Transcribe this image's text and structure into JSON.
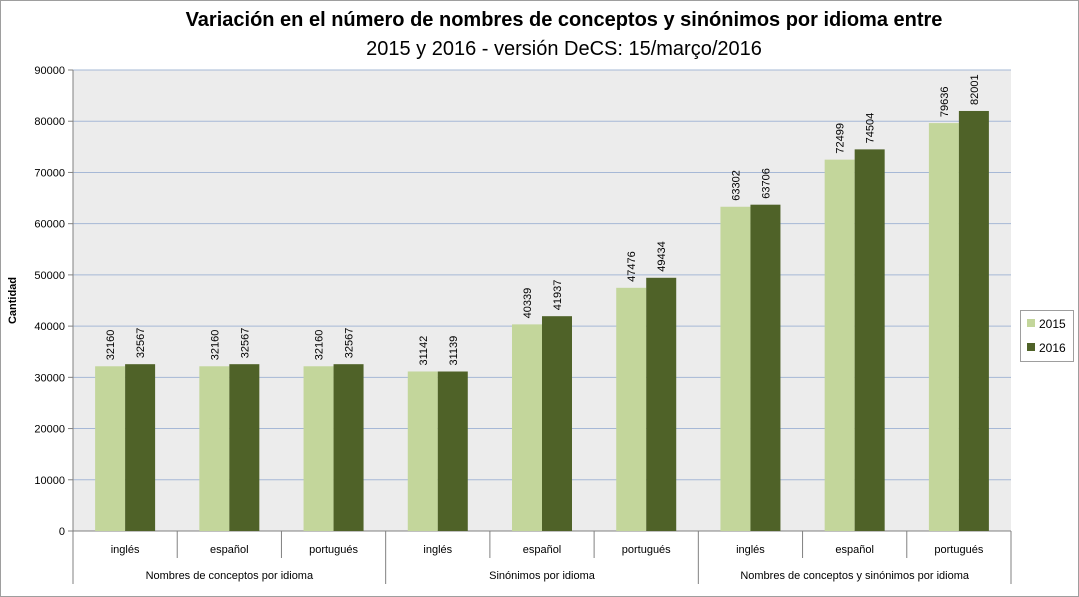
{
  "chart_data": {
    "type": "bar",
    "title": "Variación en el número de nombres de conceptos y sinónimos por idioma entre",
    "subtitle": "2015 y 2016 - versión DeCS: 15/março/2016",
    "ylabel": "Cantidad",
    "ylim": [
      0,
      90000
    ],
    "yticks": [
      "0",
      "10000",
      "20000",
      "30000",
      "40000",
      "50000",
      "60000",
      "70000",
      "80000",
      "90000"
    ],
    "grid": true,
    "legend_position": "right",
    "categories": [
      "inglés",
      "español",
      "portugués",
      "inglés",
      "español",
      "portugués",
      "inglés",
      "español",
      "portugués"
    ],
    "groups": [
      "Nombres de conceptos por idioma",
      "Sinónimos por idioma",
      "Nombres de conceptos y sinónimos por idioma"
    ],
    "series": [
      {
        "name": "2015",
        "color": "#c3d69b",
        "values": [
          32160,
          32160,
          32160,
          31142,
          40339,
          47476,
          63302,
          72499,
          79636
        ]
      },
      {
        "name": "2016",
        "color": "#4f6228",
        "values": [
          32567,
          32567,
          32567,
          31139,
          41937,
          49434,
          63706,
          74504,
          82001
        ]
      }
    ]
  }
}
